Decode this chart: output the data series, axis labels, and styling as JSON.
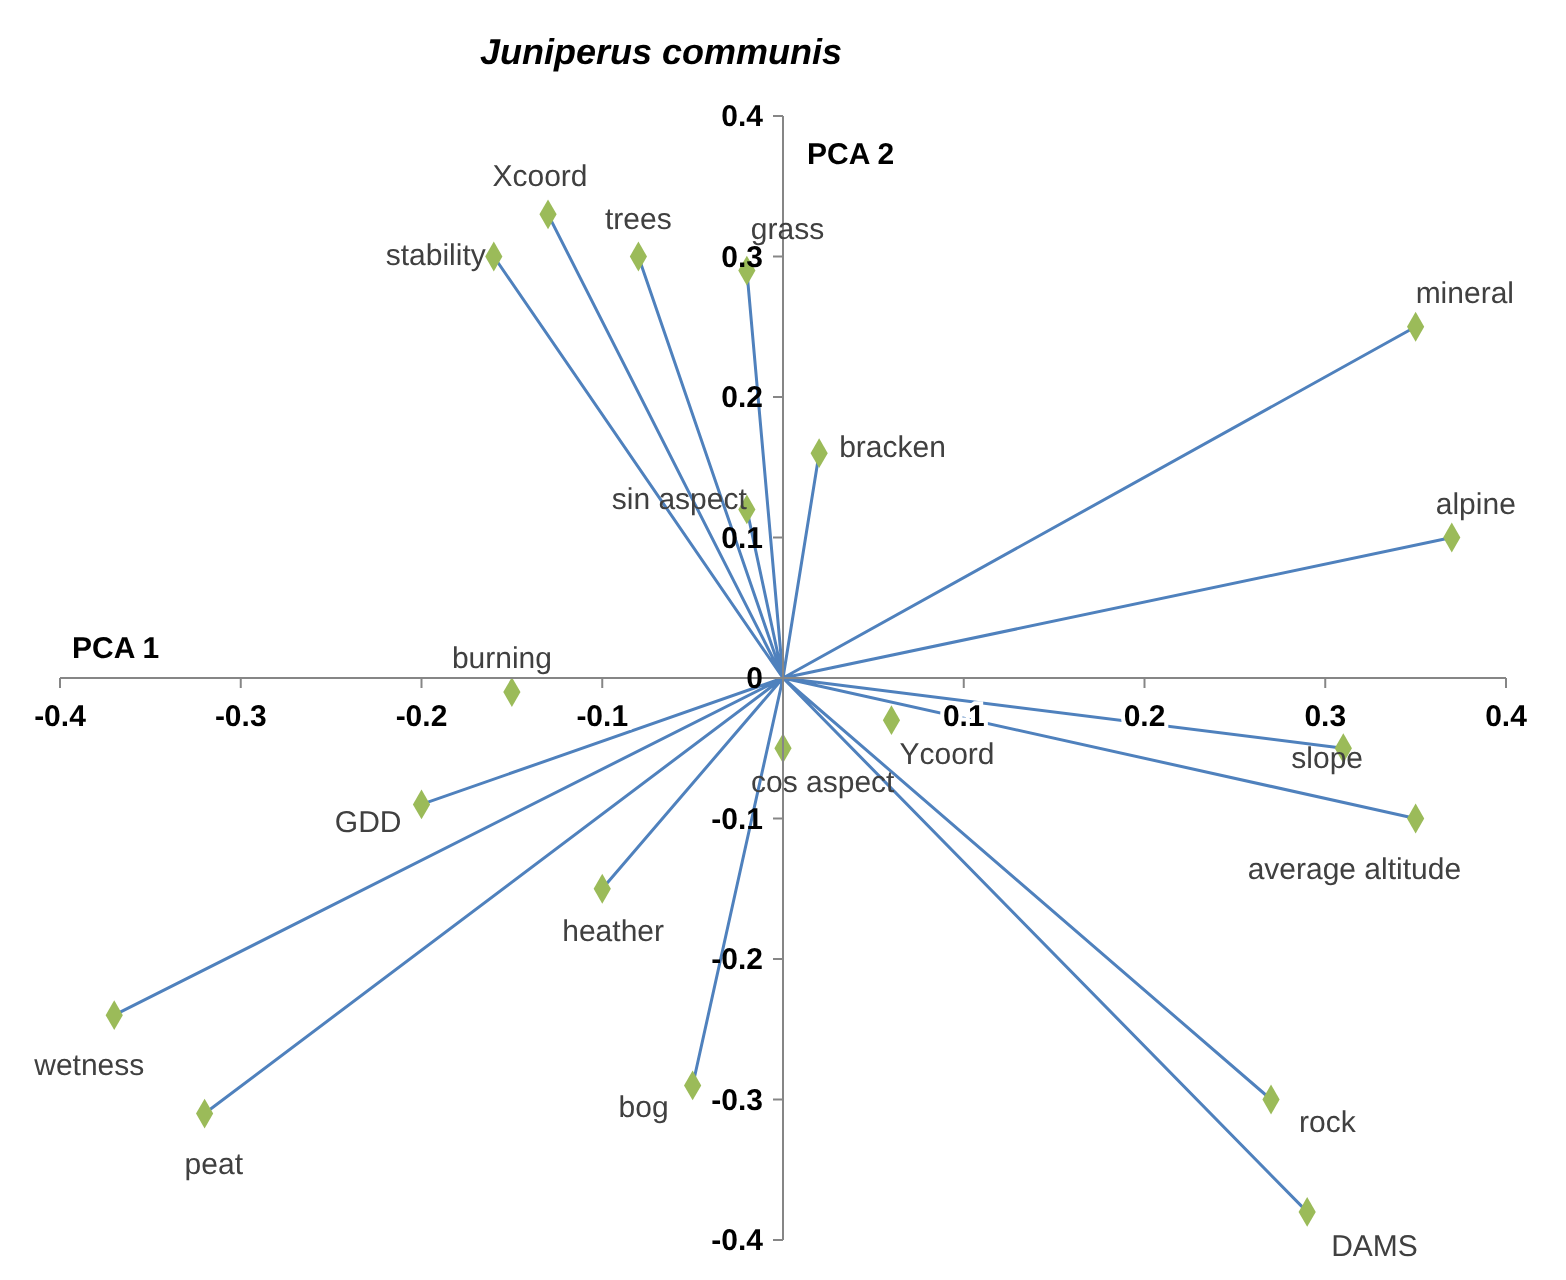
{
  "chart_data": {
    "type": "scatter",
    "title": "Juniperus communis",
    "xlabel": "PCA 1",
    "ylabel": "PCA 2",
    "xlim": [
      -0.4,
      0.4
    ],
    "ylim": [
      -0.4,
      0.4
    ],
    "xticks": [
      -0.4,
      -0.3,
      -0.2,
      -0.1,
      {
        "value": 0,
        "label": null
      },
      0.1,
      0.2,
      0.3,
      0.4
    ],
    "yticks": [
      -0.4,
      -0.3,
      -0.2,
      -0.1,
      0,
      0.1,
      0.2,
      0.3,
      0.4
    ],
    "grid": false,
    "legend": false,
    "series": [
      {
        "type": "line",
        "color": "#4f81bd",
        "marker": "none",
        "x": [
          0,
          -0.16,
          0,
          -0.13,
          0,
          -0.08,
          0,
          -0.02,
          0,
          0.35,
          0,
          0.02,
          0,
          -0.02,
          0,
          0.37,
          0,
          0.31,
          0,
          0.35,
          0,
          -0.2,
          0,
          -0.1,
          0,
          -0.37,
          0,
          -0.32,
          0,
          -0.05,
          0,
          0.27,
          0,
          0.29
        ],
        "values": [
          0,
          0.3,
          0,
          0.33,
          0,
          0.3,
          0,
          0.29,
          0,
          0.25,
          0,
          0.16,
          0,
          0.12,
          0,
          0.1,
          0,
          -0.05,
          0,
          -0.1,
          0,
          -0.09,
          0,
          -0.15,
          0,
          -0.24,
          0,
          -0.31,
          0,
          -0.29,
          0,
          -0.3,
          0,
          -0.38
        ]
      },
      {
        "type": "scatter",
        "color": "#9bbb59",
        "marker": "diamond",
        "x": [
          -0.16,
          -0.13,
          -0.08,
          -0.02,
          0.35,
          0.02,
          -0.02,
          0.37,
          0.31,
          0.35,
          -0.2,
          -0.1,
          -0.37,
          -0.32,
          -0.05,
          0.27,
          0.29,
          -0.15,
          0,
          0.06
        ],
        "values": [
          0.3,
          0.33,
          0.3,
          0.29,
          0.25,
          0.16,
          0.12,
          0.1,
          -0.05,
          -0.1,
          -0.09,
          -0.15,
          -0.24,
          -0.31,
          -0.29,
          -0.3,
          -0.38,
          -0.01,
          -0.05,
          -0.03
        ]
      }
    ],
    "annotations": [
      {
        "text": "stability",
        "x": -0.16,
        "y": 0.3
      },
      {
        "text": "Xcoord",
        "x": -0.13,
        "y": 0.33
      },
      {
        "text": "trees",
        "x": -0.08,
        "y": 0.3
      },
      {
        "text": "grass",
        "x": -0.02,
        "y": 0.29
      },
      {
        "text": "mineral",
        "x": 0.35,
        "y": 0.25
      },
      {
        "text": "bracken",
        "x": 0.02,
        "y": 0.16
      },
      {
        "text": "sin aspect",
        "x": -0.02,
        "y": 0.12
      },
      {
        "text": "alpine",
        "x": 0.37,
        "y": 0.1
      },
      {
        "text": "slope",
        "x": 0.31,
        "y": -0.05
      },
      {
        "text": "average altitude",
        "x": 0.35,
        "y": -0.1
      },
      {
        "text": "GDD",
        "x": -0.2,
        "y": -0.09
      },
      {
        "text": "heather",
        "x": -0.1,
        "y": -0.15
      },
      {
        "text": "wetness",
        "x": -0.37,
        "y": -0.24
      },
      {
        "text": "peat",
        "x": -0.32,
        "y": -0.31
      },
      {
        "text": "bog",
        "x": -0.05,
        "y": -0.29
      },
      {
        "text": "rock",
        "x": 0.27,
        "y": -0.3
      },
      {
        "text": "DAMS",
        "x": 0.29,
        "y": -0.38
      },
      {
        "text": "burning",
        "x": -0.15,
        "y": -0.01
      },
      {
        "text": "cos aspect",
        "x": 0,
        "y": -0.05
      },
      {
        "text": "Ycoord",
        "x": 0.06,
        "y": -0.03
      }
    ]
  }
}
